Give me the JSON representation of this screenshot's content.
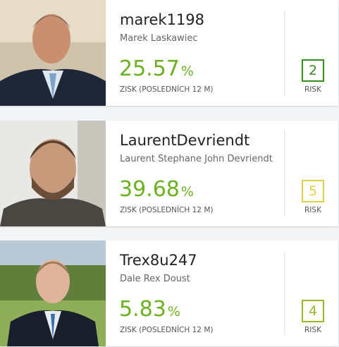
{
  "cards": [
    {
      "username": "marek1198",
      "full_name": "Marek Laskawiec",
      "return_value": "25.57",
      "return_unit": "%",
      "return_label": "ZISK (POSLEDNÍCH 12 M)",
      "risk": 2,
      "risk_label": "RISK",
      "risk_color": "#3d8a1f"
    },
    {
      "username": "LaurentDevriendt",
      "full_name": "Laurent Stephane John Devriendt",
      "return_value": "39.68",
      "return_unit": "%",
      "return_label": "ZISK (POSLEDNÍCH 12 M)",
      "risk": 5,
      "risk_label": "RISK",
      "risk_color": "#e3cf45"
    },
    {
      "username": "Trex8u247",
      "full_name": "Dale Rex Doust",
      "return_value": "5.83",
      "return_unit": "%",
      "return_label": "ZISK (POSLEDNÍCH 12 M)",
      "risk": 4,
      "risk_label": "RISK",
      "risk_color": "#9db52b"
    }
  ]
}
